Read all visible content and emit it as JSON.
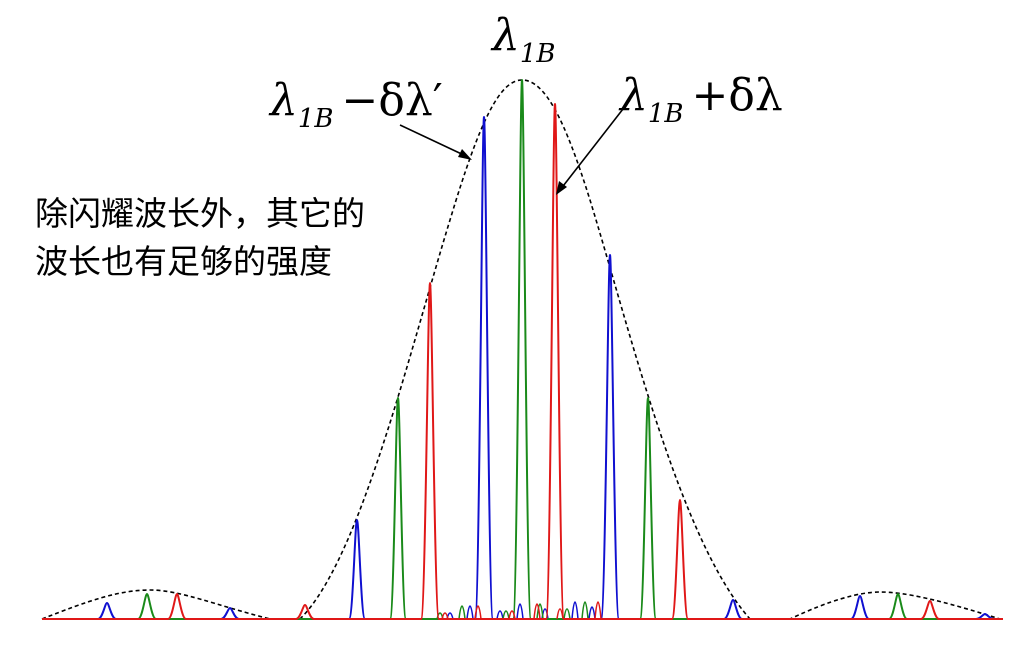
{
  "labels": {
    "center": {
      "main": "λ",
      "sub": "1B"
    },
    "left": {
      "main": "λ",
      "sub": "1B",
      "rest": "−δλ′"
    },
    "right": {
      "main": "λ",
      "sub": "1B",
      "rest": "+δλ"
    }
  },
  "note": {
    "line1": "除闪耀波长外，其它的",
    "line2": "波长也有足够的强度"
  },
  "colors": {
    "blue": "#1010d0",
    "green": "#1a8a1a",
    "red": "#e01818",
    "envelope": "#000000"
  }
}
